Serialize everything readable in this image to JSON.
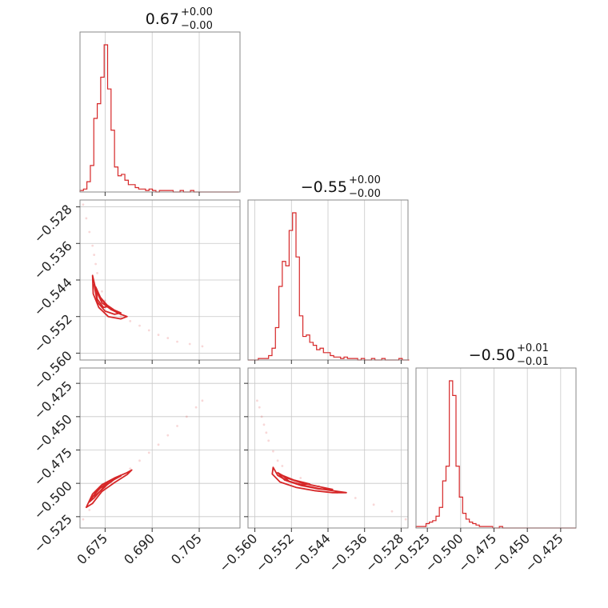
{
  "chart_data": {
    "type": "corner",
    "color": "#d62728",
    "grid": true,
    "parameters": [
      {
        "title": "0.67",
        "sup": "+0.00",
        "sub": "−0.00"
      },
      {
        "title": "−0.55",
        "sup": "+0.00",
        "sub": "−0.00"
      },
      {
        "title": "−0.50",
        "sup": "+0.01",
        "sub": "−0.01"
      }
    ],
    "ranges": [
      [
        0.667,
        0.718
      ],
      [
        -0.5615,
        -0.5265
      ],
      [
        -0.5335,
        -0.4135
      ]
    ],
    "ticks": [
      {
        "values": [
          0.675,
          0.69,
          0.705
        ],
        "labels": [
          "0.675",
          "0.690",
          "0.705"
        ]
      },
      {
        "values": [
          -0.56,
          -0.552,
          -0.544,
          -0.536,
          -0.528
        ],
        "labels": [
          "−0.560",
          "−0.552",
          "−0.544",
          "−0.536",
          "−0.528"
        ]
      },
      {
        "values": [
          -0.525,
          -0.5,
          -0.475,
          -0.45,
          -0.425
        ],
        "labels": [
          "−0.525",
          "−0.500",
          "−0.475",
          "−0.450",
          "−0.425"
        ]
      }
    ],
    "histograms": [
      {
        "bin_start": 0.667,
        "bin_width": 0.0011,
        "counts": [
          1,
          2,
          7,
          18,
          50,
          60,
          78,
          100,
          70,
          42,
          17,
          11,
          12,
          8,
          5,
          5,
          3,
          2,
          2,
          1,
          2,
          1,
          0,
          1,
          1,
          1,
          1,
          0,
          0,
          1,
          0,
          0,
          1,
          0,
          0,
          0,
          0,
          0,
          0,
          0,
          0,
          0,
          0,
          0,
          0,
          0
        ]
      },
      {
        "bin_start": -0.5615,
        "bin_width": 0.00075,
        "counts": [
          0,
          0,
          0,
          1,
          1,
          1,
          3,
          8,
          22,
          50,
          67,
          64,
          88,
          100,
          70,
          30,
          16,
          17,
          12,
          10,
          7,
          8,
          5,
          5,
          3,
          2,
          2,
          1,
          2,
          1,
          1,
          1,
          0,
          1,
          0,
          0,
          1,
          0,
          0,
          1,
          0,
          0,
          0,
          0,
          1,
          0,
          0
        ]
      },
      {
        "bin_start": -0.5335,
        "bin_width": 0.0025,
        "counts": [
          1,
          1,
          1,
          3,
          4,
          5,
          8,
          14,
          32,
          42,
          100,
          90,
          42,
          21,
          10,
          6,
          4,
          3,
          2,
          1,
          1,
          1,
          1,
          0,
          0,
          1,
          0,
          0,
          0,
          0,
          0,
          0,
          0,
          0,
          0,
          0,
          0,
          0,
          0,
          0,
          0,
          0,
          0,
          0,
          0,
          0,
          0,
          0
        ]
      }
    ],
    "scatter_2d": [
      {
        "x_param": 0,
        "y_param": 1,
        "points": [
          [
            0.668,
            -0.5275
          ],
          [
            0.669,
            -0.5305
          ],
          [
            0.67,
            -0.5335
          ],
          [
            0.671,
            -0.5365
          ],
          [
            0.6715,
            -0.5385
          ],
          [
            0.672,
            -0.5405
          ],
          [
            0.6725,
            -0.5425
          ],
          [
            0.674,
            -0.5465
          ],
          [
            0.675,
            -0.5485
          ],
          [
            0.677,
            -0.5505
          ],
          [
            0.68,
            -0.552
          ],
          [
            0.683,
            -0.553
          ],
          [
            0.686,
            -0.554
          ],
          [
            0.689,
            -0.555
          ],
          [
            0.692,
            -0.556
          ],
          [
            0.695,
            -0.5567
          ],
          [
            0.698,
            -0.5575
          ],
          [
            0.702,
            -0.558
          ],
          [
            0.706,
            -0.5585
          ]
        ]
      },
      {
        "x_param": 0,
        "y_param": 2,
        "points": [
          [
            0.668,
            -0.527
          ],
          [
            0.67,
            -0.52
          ],
          [
            0.671,
            -0.515
          ],
          [
            0.673,
            -0.507
          ],
          [
            0.677,
            -0.499
          ],
          [
            0.68,
            -0.494
          ],
          [
            0.683,
            -0.489
          ],
          [
            0.686,
            -0.483
          ],
          [
            0.689,
            -0.477
          ],
          [
            0.692,
            -0.471
          ],
          [
            0.695,
            -0.464
          ],
          [
            0.698,
            -0.457
          ],
          [
            0.701,
            -0.45
          ],
          [
            0.704,
            -0.443
          ],
          [
            0.706,
            -0.438
          ]
        ]
      },
      {
        "x_param": 1,
        "y_param": 2,
        "points": [
          [
            -0.5595,
            -0.438
          ],
          [
            -0.559,
            -0.443
          ],
          [
            -0.5585,
            -0.45
          ],
          [
            -0.558,
            -0.456
          ],
          [
            -0.5575,
            -0.462
          ],
          [
            -0.557,
            -0.468
          ],
          [
            -0.556,
            -0.476
          ],
          [
            -0.555,
            -0.483
          ],
          [
            -0.554,
            -0.487
          ],
          [
            -0.55,
            -0.496
          ],
          [
            -0.546,
            -0.502
          ],
          [
            -0.542,
            -0.507
          ],
          [
            -0.538,
            -0.511
          ],
          [
            -0.534,
            -0.516
          ],
          [
            -0.53,
            -0.521
          ],
          [
            -0.527,
            -0.527
          ]
        ]
      }
    ],
    "contours_2d": [
      {
        "x_param": 0,
        "y_param": 1,
        "levels": [
          [
            [
              0.671,
              -0.543
            ],
            [
              0.672,
              -0.546
            ],
            [
              0.674,
              -0.549
            ],
            [
              0.677,
              -0.5505
            ],
            [
              0.68,
              -0.5515
            ],
            [
              0.682,
              -0.552
            ],
            [
              0.68,
              -0.5525
            ],
            [
              0.676,
              -0.552
            ],
            [
              0.673,
              -0.55
            ],
            [
              0.6712,
              -0.547
            ]
          ],
          [
            [
              0.6715,
              -0.545
            ],
            [
              0.673,
              -0.5475
            ],
            [
              0.675,
              -0.5492
            ],
            [
              0.678,
              -0.5506
            ],
            [
              0.68,
              -0.5512
            ],
            [
              0.678,
              -0.5515
            ],
            [
              0.675,
              -0.5508
            ],
            [
              0.6725,
              -0.5488
            ]
          ],
          [
            [
              0.672,
              -0.5455
            ],
            [
              0.6735,
              -0.5478
            ],
            [
              0.676,
              -0.5498
            ],
            [
              0.6745,
              -0.55
            ],
            [
              0.6725,
              -0.5482
            ]
          ]
        ]
      },
      {
        "x_param": 0,
        "y_param": 2,
        "levels": [
          [
            [
              0.669,
              -0.518
            ],
            [
              0.671,
              -0.508
            ],
            [
              0.674,
              -0.501
            ],
            [
              0.678,
              -0.496
            ],
            [
              0.682,
              -0.492
            ],
            [
              0.6835,
              -0.49
            ],
            [
              0.682,
              -0.4935
            ],
            [
              0.678,
              -0.4995
            ],
            [
              0.674,
              -0.506
            ],
            [
              0.671,
              -0.515
            ]
          ],
          [
            [
              0.67,
              -0.514
            ],
            [
              0.6725,
              -0.505
            ],
            [
              0.676,
              -0.499
            ],
            [
              0.68,
              -0.4945
            ],
            [
              0.678,
              -0.497
            ],
            [
              0.6745,
              -0.503
            ],
            [
              0.6715,
              -0.511
            ]
          ],
          [
            [
              0.671,
              -0.51
            ],
            [
              0.6735,
              -0.5035
            ],
            [
              0.676,
              -0.5
            ],
            [
              0.6748,
              -0.503
            ],
            [
              0.6722,
              -0.5085
            ]
          ]
        ]
      },
      {
        "x_param": 1,
        "y_param": 2,
        "levels": [
          [
            [
              -0.556,
              -0.488
            ],
            [
              -0.555,
              -0.494
            ],
            [
              -0.553,
              -0.498
            ],
            [
              -0.55,
              -0.501
            ],
            [
              -0.546,
              -0.504
            ],
            [
              -0.542,
              -0.506
            ],
            [
              -0.54,
              -0.507
            ],
            [
              -0.543,
              -0.507
            ],
            [
              -0.547,
              -0.5055
            ],
            [
              -0.551,
              -0.503
            ],
            [
              -0.5545,
              -0.499
            ],
            [
              -0.5562,
              -0.493
            ]
          ],
          [
            [
              -0.555,
              -0.492
            ],
            [
              -0.553,
              -0.496
            ],
            [
              -0.55,
              -0.4995
            ],
            [
              -0.546,
              -0.5025
            ],
            [
              -0.543,
              -0.5045
            ],
            [
              -0.546,
              -0.5042
            ],
            [
              -0.55,
              -0.5015
            ],
            [
              -0.5535,
              -0.4975
            ]
          ],
          [
            [
              -0.554,
              -0.494
            ],
            [
              -0.5515,
              -0.4975
            ],
            [
              -0.548,
              -0.5005
            ],
            [
              -0.55,
              -0.5008
            ],
            [
              -0.5525,
              -0.4985
            ]
          ]
        ]
      }
    ]
  }
}
